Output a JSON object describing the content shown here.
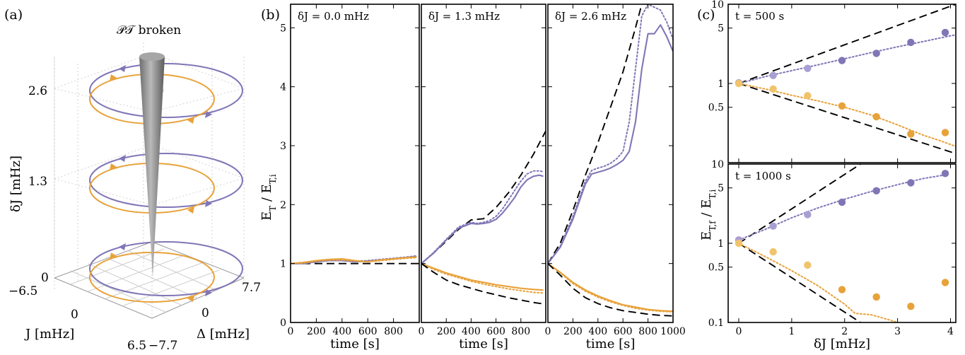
{
  "colors": {
    "purple": "#8076b6",
    "orange": "#e8a23a",
    "purple_light": "#a99fd3",
    "orange_light": "#f0c46c",
    "cone": "#8a8a8a"
  },
  "panel_a": {
    "label": "(a)",
    "top_title": "𝒫𝒯 broken",
    "zlabel": "δJ [mHz]",
    "zticks": [
      "0",
      "1.3",
      "2.6"
    ],
    "jlabel": "J [mHz]",
    "jticks": [
      "−6.5",
      "0",
      "6.5"
    ],
    "dlabel": "Δ [mHz]",
    "dticks": [
      "7.7",
      "0",
      "−7.7"
    ]
  },
  "panel_b": {
    "label": "(b)"
  },
  "panel_c": {
    "label": "(c)"
  },
  "chart_data": [
    {
      "type": "line",
      "annotation": "δJ = 0.0 mHz",
      "xlabel": "time [s]",
      "ylabel": "E_T / E_T,i",
      "xlim": [
        0,
        1000
      ],
      "ylim": [
        0,
        5.4
      ],
      "xticks": [
        0,
        200,
        400,
        600,
        800
      ],
      "yticks": [
        0,
        1,
        2,
        3,
        4,
        5
      ],
      "series": [
        {
          "style": "dashed-black",
          "x": [
            0,
            1000
          ],
          "y": [
            1.0,
            1.0
          ]
        },
        {
          "style": "solid-purple",
          "x": [
            0,
            100,
            200,
            300,
            400,
            500,
            600,
            700,
            800,
            900,
            980
          ],
          "y": [
            1.0,
            1.0,
            1.03,
            1.05,
            1.05,
            1.03,
            1.04,
            1.06,
            1.08,
            1.1,
            1.12
          ]
        },
        {
          "style": "dotted-purple",
          "x": [
            0,
            100,
            200,
            300,
            400,
            500,
            600,
            700,
            800,
            900,
            980
          ],
          "y": [
            1.0,
            1.01,
            1.03,
            1.05,
            1.05,
            1.04,
            1.05,
            1.07,
            1.09,
            1.11,
            1.13
          ]
        },
        {
          "style": "solid-orange",
          "x": [
            0,
            100,
            200,
            300,
            400,
            500,
            600,
            700,
            800,
            900,
            980
          ],
          "y": [
            1.0,
            1.02,
            1.05,
            1.07,
            1.08,
            1.05,
            1.03,
            1.06,
            1.08,
            1.1,
            1.11
          ]
        },
        {
          "style": "dotted-orange",
          "x": [
            0,
            100,
            200,
            300,
            400,
            500,
            600,
            700,
            800,
            900,
            980
          ],
          "y": [
            1.0,
            1.01,
            1.04,
            1.06,
            1.06,
            1.04,
            1.03,
            1.05,
            1.07,
            1.09,
            1.1
          ]
        }
      ]
    },
    {
      "type": "line",
      "annotation": "δJ = 1.3 mHz",
      "xlabel": "time [s]",
      "xlim": [
        0,
        1000
      ],
      "ylim": [
        0,
        5.4
      ],
      "xticks": [
        0,
        200,
        400,
        600,
        800
      ],
      "series": [
        {
          "style": "dashed-black",
          "x": [
            0,
            100,
            200,
            300,
            400,
            500,
            600,
            700,
            800,
            900,
            1000
          ],
          "y": [
            1.0,
            1.18,
            1.38,
            1.58,
            1.74,
            1.76,
            1.95,
            2.2,
            2.5,
            2.85,
            3.25
          ]
        },
        {
          "style": "solid-purple",
          "x": [
            0,
            100,
            200,
            300,
            400,
            450,
            500,
            550,
            600,
            650,
            700,
            750,
            800,
            850,
            900,
            950,
            980
          ],
          "y": [
            1.0,
            1.18,
            1.4,
            1.6,
            1.68,
            1.67,
            1.68,
            1.7,
            1.75,
            1.85,
            1.98,
            2.12,
            2.3,
            2.42,
            2.48,
            2.5,
            2.48
          ]
        },
        {
          "style": "dotted-purple",
          "x": [
            0,
            100,
            200,
            300,
            400,
            450,
            500,
            550,
            600,
            650,
            700,
            750,
            800,
            850,
            900,
            950,
            980
          ],
          "y": [
            1.0,
            1.19,
            1.41,
            1.62,
            1.7,
            1.68,
            1.7,
            1.73,
            1.8,
            1.92,
            2.08,
            2.24,
            2.4,
            2.52,
            2.57,
            2.57,
            2.56
          ]
        },
        {
          "style": "solid-orange",
          "x": [
            0,
            100,
            200,
            300,
            400,
            500,
            600,
            700,
            800,
            900,
            980
          ],
          "y": [
            1.0,
            0.92,
            0.84,
            0.78,
            0.72,
            0.68,
            0.64,
            0.61,
            0.58,
            0.56,
            0.55
          ]
        },
        {
          "style": "dotted-orange",
          "x": [
            0,
            100,
            200,
            300,
            400,
            500,
            600,
            700,
            800,
            900,
            980
          ],
          "y": [
            1.0,
            0.9,
            0.82,
            0.76,
            0.7,
            0.65,
            0.61,
            0.57,
            0.54,
            0.51,
            0.5
          ]
        },
        {
          "style": "dashed-black",
          "x": [
            0,
            100,
            200,
            300,
            400,
            500,
            600,
            700,
            800,
            900,
            1000
          ],
          "y": [
            1.0,
            0.85,
            0.72,
            0.64,
            0.58,
            0.52,
            0.47,
            0.42,
            0.38,
            0.34,
            0.31
          ]
        }
      ]
    },
    {
      "type": "line",
      "annotation": "δJ = 2.6 mHz",
      "xlabel": "time [s]",
      "xlim": [
        0,
        1000
      ],
      "ylim": [
        0,
        5.4
      ],
      "xticks": [
        0,
        200,
        400,
        600,
        800,
        1000
      ],
      "series": [
        {
          "style": "dashed-black",
          "x": [
            0,
            100,
            200,
            300,
            400,
            500,
            600,
            700,
            750
          ],
          "y": [
            1.0,
            1.35,
            1.9,
            2.5,
            3.05,
            3.65,
            4.25,
            5.0,
            5.4
          ]
        },
        {
          "style": "dotted-purple",
          "x": [
            0,
            100,
            200,
            300,
            350,
            400,
            450,
            500,
            550,
            600,
            650,
            700,
            750,
            800,
            850,
            900,
            950,
            1000
          ],
          "y": [
            1.0,
            1.3,
            1.8,
            2.4,
            2.58,
            2.62,
            2.65,
            2.7,
            2.78,
            2.9,
            3.4,
            4.3,
            5.2,
            5.4,
            5.35,
            5.3,
            5.1,
            4.8
          ]
        },
        {
          "style": "solid-purple",
          "x": [
            0,
            100,
            200,
            300,
            350,
            400,
            450,
            500,
            550,
            600,
            650,
            700,
            750,
            800,
            850,
            900,
            950,
            1000
          ],
          "y": [
            1.0,
            1.28,
            1.75,
            2.35,
            2.52,
            2.55,
            2.58,
            2.62,
            2.68,
            2.75,
            2.9,
            3.4,
            4.3,
            4.9,
            4.9,
            5.05,
            4.85,
            4.6
          ]
        },
        {
          "style": "solid-orange",
          "x": [
            0,
            100,
            200,
            300,
            400,
            500,
            600,
            700,
            800,
            900,
            1000
          ],
          "y": [
            1.0,
            0.85,
            0.68,
            0.55,
            0.45,
            0.37,
            0.3,
            0.26,
            0.22,
            0.2,
            0.19
          ]
        },
        {
          "style": "dotted-orange",
          "x": [
            0,
            100,
            200,
            300,
            400,
            500,
            600,
            700,
            800,
            900,
            1000
          ],
          "y": [
            1.0,
            0.84,
            0.66,
            0.53,
            0.43,
            0.35,
            0.29,
            0.24,
            0.21,
            0.19,
            0.18
          ]
        },
        {
          "style": "dashed-black",
          "x": [
            0,
            100,
            200,
            300,
            400,
            500,
            600,
            700,
            800,
            900,
            1000
          ],
          "y": [
            1.0,
            0.8,
            0.58,
            0.42,
            0.32,
            0.25,
            0.2,
            0.17,
            0.14,
            0.12,
            0.11
          ]
        }
      ]
    },
    {
      "type": "scatter",
      "annotation": "t = 500 s",
      "yscale": "log",
      "xlim": [
        -0.2,
        4.1
      ],
      "ylim": [
        0.1,
        10
      ],
      "yticks": [
        0.5,
        1,
        5,
        10
      ],
      "yticklabels": [
        "0.5",
        "1",
        "5",
        "10"
      ],
      "series": [
        {
          "style": "dashed-black",
          "x": [
            0,
            4.1
          ],
          "y": [
            1.0,
            10.0
          ]
        },
        {
          "style": "dashed-black",
          "x": [
            0,
            4.1
          ],
          "y": [
            1.0,
            0.13
          ]
        },
        {
          "style": "dotted-purple",
          "x": [
            0,
            0.5,
            1.0,
            1.5,
            2.0,
            2.5,
            3.0,
            3.5,
            4.0,
            4.1
          ],
          "y": [
            1.0,
            1.22,
            1.45,
            1.72,
            2.05,
            2.45,
            2.9,
            3.4,
            4.0,
            4.1
          ]
        },
        {
          "style": "dotted-orange",
          "x": [
            0,
            0.5,
            1.0,
            1.5,
            2.0,
            2.5,
            3.0,
            3.5,
            3.8,
            4.1
          ],
          "y": [
            1.0,
            0.85,
            0.71,
            0.6,
            0.5,
            0.4,
            0.3,
            0.22,
            0.19,
            0.16
          ]
        },
        {
          "style": "points-purple",
          "x": [
            0.0,
            0.65,
            1.3,
            1.95,
            2.6,
            3.25,
            3.9
          ],
          "y": [
            1.02,
            1.26,
            1.55,
            1.95,
            2.4,
            3.3,
            4.4
          ]
        },
        {
          "style": "points-orange",
          "x": [
            0.0,
            0.65,
            1.3,
            1.95,
            2.6,
            3.25,
            3.9
          ],
          "y": [
            1.0,
            0.85,
            0.7,
            0.52,
            0.38,
            0.23,
            0.24
          ]
        }
      ]
    },
    {
      "type": "scatter",
      "annotation": "t = 1000 s",
      "yscale": "log",
      "xlabel": "δJ [mHz]",
      "ylabel": "E_T,f / E_T,i",
      "xlim": [
        -0.2,
        4.1
      ],
      "ylim": [
        0.1,
        10
      ],
      "xticks": [
        0,
        1,
        2,
        3,
        4
      ],
      "yticks": [
        0.1,
        0.5,
        1,
        5,
        10
      ],
      "yticklabels": [
        "0.1",
        "0.5",
        "1",
        "5",
        "10"
      ],
      "series": [
        {
          "style": "dashed-black",
          "x": [
            0,
            2.3
          ],
          "y": [
            1.0,
            10.0
          ]
        },
        {
          "style": "dashed-black",
          "x": [
            0,
            2.3
          ],
          "y": [
            1.0,
            0.1
          ]
        },
        {
          "style": "dotted-purple",
          "x": [
            0,
            0.5,
            1.0,
            1.5,
            2.0,
            2.5,
            3.0,
            3.5,
            3.9
          ],
          "y": [
            1.1,
            1.5,
            2.1,
            2.8,
            3.6,
            4.5,
            5.5,
            6.6,
            7.3
          ]
        },
        {
          "style": "dotted-orange",
          "x": [
            0,
            0.5,
            1.0,
            1.5,
            2.0,
            2.2,
            2.5,
            2.8,
            3.0
          ],
          "y": [
            1.0,
            0.68,
            0.45,
            0.29,
            0.17,
            0.13,
            0.125,
            0.11,
            0.1
          ]
        },
        {
          "style": "points-purple",
          "x": [
            0.0,
            0.65,
            1.3,
            1.95,
            2.6,
            3.25,
            3.9
          ],
          "y": [
            1.1,
            1.65,
            2.3,
            3.3,
            4.6,
            5.8,
            7.6
          ]
        },
        {
          "style": "points-orange",
          "x": [
            0.0,
            0.65,
            1.3,
            1.95,
            2.6,
            3.25,
            3.9
          ],
          "y": [
            1.0,
            0.78,
            0.53,
            0.26,
            0.21,
            0.16,
            0.32
          ]
        }
      ]
    }
  ]
}
